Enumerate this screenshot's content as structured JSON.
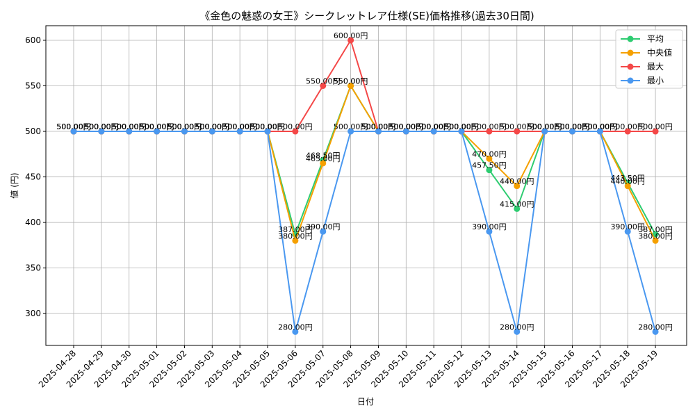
{
  "chart_data": {
    "type": "line",
    "title": "《金色の魅惑の女王》シークレットレア仕様(SE)価格推移(過去30日間)",
    "xlabel": "日付",
    "ylabel": "値 (円)",
    "ylim": [
      265,
      616
    ],
    "yticks": [
      300,
      350,
      400,
      450,
      500,
      550,
      600
    ],
    "grid": true,
    "legend_position": "top-right",
    "value_suffix": "円",
    "categories": [
      "2025-04-28",
      "2025-04-29",
      "2025-04-30",
      "2025-05-01",
      "2025-05-02",
      "2025-05-03",
      "2025-05-04",
      "2025-05-05",
      "2025-05-06",
      "2025-05-07",
      "2025-05-08",
      "2025-05-09",
      "2025-05-10",
      "2025-05-11",
      "2025-05-12",
      "2025-05-13",
      "2025-05-14",
      "2025-05-15",
      "2025-05-16",
      "2025-05-17",
      "2025-05-18",
      "2025-05-19"
    ],
    "series": [
      {
        "name": "平均",
        "color": "#2ecc71",
        "values": [
          500,
          500,
          500,
          500,
          500,
          500,
          500,
          500,
          387,
          468.5,
          550,
          500,
          500,
          500,
          500,
          457.5,
          415,
          500,
          500,
          500,
          443.5,
          387
        ]
      },
      {
        "name": "中央値",
        "color": "#f5a000",
        "values": [
          500,
          500,
          500,
          500,
          500,
          500,
          500,
          500,
          380,
          465,
          550,
          500,
          500,
          500,
          500,
          470,
          440,
          500,
          500,
          500,
          440,
          380
        ]
      },
      {
        "name": "最大",
        "color": "#f44848",
        "values": [
          500,
          500,
          500,
          500,
          500,
          500,
          500,
          500,
          500,
          550,
          600,
          500,
          500,
          500,
          500,
          500,
          500,
          500,
          500,
          500,
          500,
          500
        ]
      },
      {
        "name": "最小",
        "color": "#4a98f0",
        "values": [
          500,
          500,
          500,
          500,
          500,
          500,
          500,
          500,
          280,
          390,
          500,
          500,
          500,
          500,
          500,
          390,
          280,
          500,
          500,
          500,
          390,
          280
        ]
      }
    ]
  }
}
